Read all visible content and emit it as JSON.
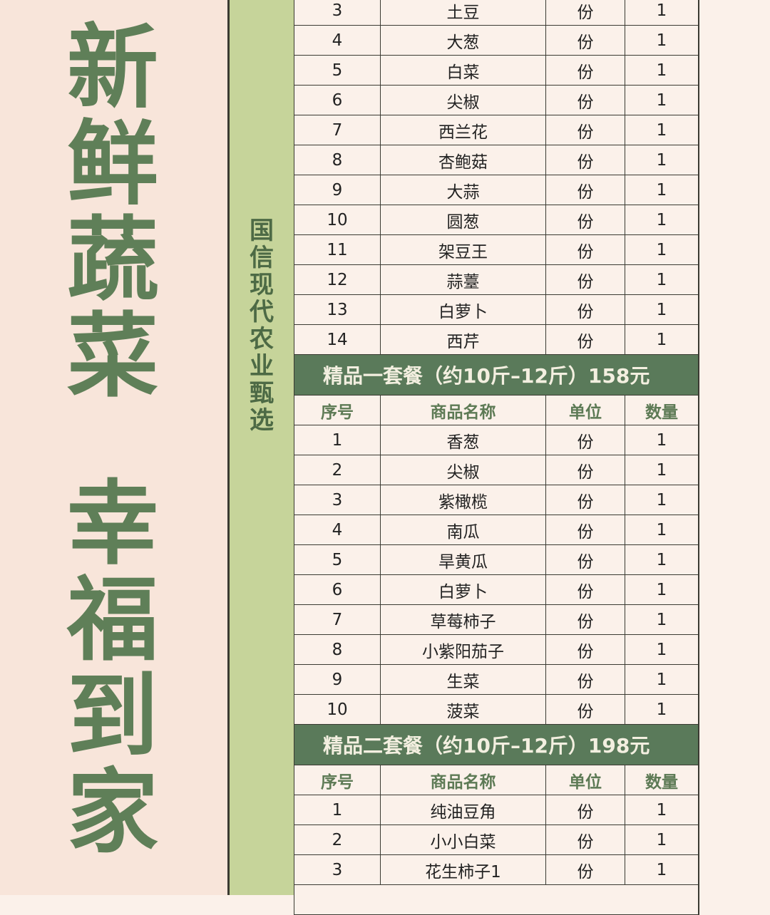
{
  "slogan": {
    "line1": [
      "新",
      "鲜",
      "蔬",
      "菜"
    ],
    "line2": [
      "幸",
      "福",
      "到",
      "家"
    ]
  },
  "side_label": [
    "国",
    "信",
    "现",
    "代",
    "农",
    "业",
    "甄",
    "选"
  ],
  "columns": [
    "序号",
    "商品名称",
    "单位",
    "数量"
  ],
  "colors": {
    "title_green": "#5f7f58",
    "bar_green": "#5a7a5a",
    "strip_green": "#c6d49a",
    "background": "#fbf1ea"
  },
  "sections": [
    {
      "title": "",
      "items": [
        [
          "3",
          "土豆",
          "份",
          "1"
        ],
        [
          "4",
          "大葱",
          "份",
          "1"
        ],
        [
          "5",
          "白菜",
          "份",
          "1"
        ],
        [
          "6",
          "尖椒",
          "份",
          "1"
        ],
        [
          "7",
          "西兰花",
          "份",
          "1"
        ],
        [
          "8",
          "杏鲍菇",
          "份",
          "1"
        ],
        [
          "9",
          "大蒜",
          "份",
          "1"
        ],
        [
          "10",
          "圆葱",
          "份",
          "1"
        ],
        [
          "11",
          "架豆王",
          "份",
          "1"
        ],
        [
          "12",
          "蒜薹",
          "份",
          "1"
        ],
        [
          "13",
          "白萝卜",
          "份",
          "1"
        ],
        [
          "14",
          "西芹",
          "份",
          "1"
        ]
      ]
    },
    {
      "title": "精品一套餐（约10斤–12斤）158元",
      "items": [
        [
          "1",
          "香葱",
          "份",
          "1"
        ],
        [
          "2",
          "尖椒",
          "份",
          "1"
        ],
        [
          "3",
          "紫橄榄",
          "份",
          "1"
        ],
        [
          "4",
          "南瓜",
          "份",
          "1"
        ],
        [
          "5",
          "旱黄瓜",
          "份",
          "1"
        ],
        [
          "6",
          "白萝卜",
          "份",
          "1"
        ],
        [
          "7",
          "草莓柿子",
          "份",
          "1"
        ],
        [
          "8",
          "小紫阳茄子",
          "份",
          "1"
        ],
        [
          "9",
          "生菜",
          "份",
          "1"
        ],
        [
          "10",
          "菠菜",
          "份",
          "1"
        ]
      ]
    },
    {
      "title": "精品二套餐（约10斤–12斤）198元",
      "items": [
        [
          "1",
          "纯油豆角",
          "份",
          "1"
        ],
        [
          "2",
          "小小白菜",
          "份",
          "1"
        ],
        [
          "3",
          "花生柿子1",
          "份",
          "1"
        ]
      ]
    }
  ]
}
